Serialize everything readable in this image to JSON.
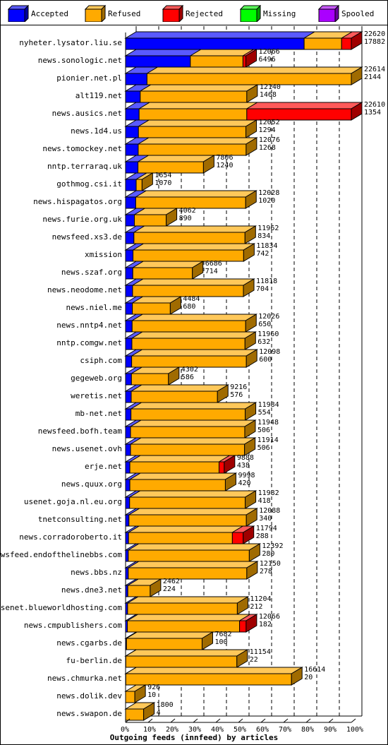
{
  "legend": [
    {
      "label": "Accepted",
      "color": "#0000ff",
      "side": "#00009f",
      "top": "#5a5aff"
    },
    {
      "label": "Refused",
      "color": "#ffaa00",
      "side": "#a06b00",
      "top": "#ffc85a"
    },
    {
      "label": "Rejected",
      "color": "#ff0000",
      "side": "#9f0000",
      "top": "#ff5a5a"
    },
    {
      "label": "Missing",
      "color": "#00ff00",
      "side": "#009f00",
      "top": "#5aff5a"
    },
    {
      "label": "Spooled",
      "color": "#aa00ff",
      "side": "#6a009f",
      "top": "#c85aff"
    }
  ],
  "chart_data": {
    "type": "bar",
    "orientation": "horizontal",
    "stacked": true,
    "xlabel": "Outgoing feeds (innfeed) by articles",
    "xlim": [
      0,
      100
    ],
    "x_unit": "%",
    "x_ticks": [
      "0%",
      "10%",
      "20%",
      "30%",
      "40%",
      "50%",
      "60%",
      "70%",
      "80%",
      "90%",
      "100%"
    ],
    "grid": true,
    "legend_position": "top",
    "series_order": [
      "Accepted",
      "Refused",
      "Rejected",
      "Missing",
      "Spooled"
    ],
    "bars": [
      {
        "site": "nyheter.lysator.liu.se",
        "total": "22620",
        "accepted": "17882",
        "values": [
          79.1,
          16.6,
          4.3,
          0,
          0
        ]
      },
      {
        "site": "news.sonologic.net",
        "total": "12066",
        "accepted": "6496",
        "values": [
          28.7,
          23.3,
          1.3,
          0,
          0
        ]
      },
      {
        "site": "pionier.net.pl",
        "total": "22614",
        "accepted": "2144",
        "values": [
          9.5,
          90.5,
          0,
          0,
          0
        ]
      },
      {
        "site": "alt119.net",
        "total": "12140",
        "accepted": "1468",
        "values": [
          6.5,
          47.2,
          0,
          0,
          0
        ]
      },
      {
        "site": "news.ausics.net",
        "total": "22610",
        "accepted": "1354",
        "values": [
          6.0,
          47.7,
          46.3,
          0,
          0
        ]
      },
      {
        "site": "news.1d4.us",
        "total": "12052",
        "accepted": "1294",
        "values": [
          5.7,
          47.6,
          0,
          0,
          0
        ]
      },
      {
        "site": "news.tomockey.net",
        "total": "12076",
        "accepted": "1268",
        "values": [
          5.6,
          47.8,
          0,
          0,
          0
        ]
      },
      {
        "site": "nntp.terraraq.uk",
        "total": "7806",
        "accepted": "1240",
        "values": [
          5.5,
          29.0,
          0,
          0,
          0
        ]
      },
      {
        "site": "gothmog.csi.it",
        "total": "1654",
        "accepted": "1070",
        "values": [
          4.7,
          2.6,
          0,
          0,
          0
        ]
      },
      {
        "site": "news.hispagatos.org",
        "total": "12028",
        "accepted": "1020",
        "values": [
          4.5,
          48.7,
          0,
          0,
          0
        ]
      },
      {
        "site": "news.furie.org.uk",
        "total": "4062",
        "accepted": "890",
        "values": [
          3.9,
          14.1,
          0,
          0,
          0
        ]
      },
      {
        "site": "newsfeed.xs3.de",
        "total": "11962",
        "accepted": "834",
        "values": [
          3.7,
          49.2,
          0,
          0,
          0
        ]
      },
      {
        "site": "xmission",
        "total": "11834",
        "accepted": "742",
        "values": [
          3.3,
          49.0,
          0,
          0,
          0
        ]
      },
      {
        "site": "news.szaf.org",
        "total": "6686",
        "accepted": "714",
        "values": [
          3.2,
          26.4,
          0,
          0,
          0
        ]
      },
      {
        "site": "news.neodome.net",
        "total": "11818",
        "accepted": "704",
        "values": [
          3.1,
          49.1,
          0,
          0,
          0
        ]
      },
      {
        "site": "news.niel.me",
        "total": "4484",
        "accepted": "680",
        "values": [
          3.0,
          16.8,
          0,
          0,
          0
        ]
      },
      {
        "site": "news.nntp4.net",
        "total": "12026",
        "accepted": "650",
        "values": [
          2.9,
          50.3,
          0,
          0,
          0
        ]
      },
      {
        "site": "nntp.comgw.net",
        "total": "11960",
        "accepted": "632",
        "values": [
          2.8,
          50.1,
          0,
          0,
          0
        ]
      },
      {
        "site": "csiph.com",
        "total": "12098",
        "accepted": "600",
        "values": [
          2.7,
          50.8,
          0,
          0,
          0
        ]
      },
      {
        "site": "gegeweb.org",
        "total": "4302",
        "accepted": "586",
        "values": [
          2.6,
          16.4,
          0,
          0,
          0
        ]
      },
      {
        "site": "weretis.net",
        "total": "9216",
        "accepted": "576",
        "values": [
          2.5,
          38.2,
          0,
          0,
          0
        ]
      },
      {
        "site": "mb-net.net",
        "total": "11984",
        "accepted": "554",
        "values": [
          2.4,
          50.6,
          0,
          0,
          0
        ]
      },
      {
        "site": "newsfeed.bofh.team",
        "total": "11948",
        "accepted": "506",
        "values": [
          2.2,
          50.6,
          0,
          0,
          0
        ]
      },
      {
        "site": "news.usenet.ovh",
        "total": "11914",
        "accepted": "506",
        "values": [
          2.2,
          50.5,
          0,
          0,
          0
        ]
      },
      {
        "site": "erje.net",
        "total": "9888",
        "accepted": "438",
        "values": [
          1.9,
          39.5,
          2.3,
          0,
          0
        ]
      },
      {
        "site": "news.quux.org",
        "total": "9998",
        "accepted": "420",
        "values": [
          1.9,
          42.3,
          0,
          0,
          0
        ]
      },
      {
        "site": "usenet.goja.nl.eu.org",
        "total": "11982",
        "accepted": "418",
        "values": [
          1.8,
          51.2,
          0,
          0,
          0
        ]
      },
      {
        "site": "tnetconsulting.net",
        "total": "12088",
        "accepted": "340",
        "values": [
          1.5,
          52.0,
          0,
          0,
          0
        ]
      },
      {
        "site": "news.corradoroberto.it",
        "total": "11794",
        "accepted": "288",
        "values": [
          1.3,
          46.0,
          4.8,
          0,
          0
        ]
      },
      {
        "site": "newsfeed.endofthelinebbs.com",
        "total": "12392",
        "accepted": "280",
        "values": [
          1.2,
          53.6,
          0,
          0,
          0
        ]
      },
      {
        "site": "news.bbs.nz",
        "total": "12150",
        "accepted": "278",
        "values": [
          1.2,
          52.5,
          0,
          0,
          0
        ]
      },
      {
        "site": "news.dne3.net",
        "total": "2462",
        "accepted": "224",
        "values": [
          1.0,
          9.9,
          0,
          0,
          0
        ]
      },
      {
        "site": "usenet.blueworldhosting.com",
        "total": "11204",
        "accepted": "212",
        "values": [
          0.9,
          48.6,
          0,
          0,
          0
        ]
      },
      {
        "site": "news.cmpublishers.com",
        "total": "12066",
        "accepted": "182",
        "values": [
          0.8,
          49.7,
          2.9,
          0,
          0
        ]
      },
      {
        "site": "news.cgarbs.de",
        "total": "7682",
        "accepted": "100",
        "values": [
          0.4,
          33.5,
          0,
          0,
          0
        ]
      },
      {
        "site": "fu-berlin.de",
        "total": "11154",
        "accepted": "22",
        "values": [
          0.1,
          49.2,
          0,
          0,
          0
        ]
      },
      {
        "site": "news.chmurka.net",
        "total": "16614",
        "accepted": "20",
        "values": [
          0.1,
          73.4,
          0,
          0,
          0
        ]
      },
      {
        "site": "news.dolik.dev",
        "total": "926",
        "accepted": "10",
        "values": [
          0.0,
          4.1,
          0,
          0,
          0
        ]
      },
      {
        "site": "news.swapon.de",
        "total": "1800",
        "accepted": "4",
        "values": [
          0.0,
          8.0,
          0,
          0,
          0
        ]
      }
    ]
  }
}
